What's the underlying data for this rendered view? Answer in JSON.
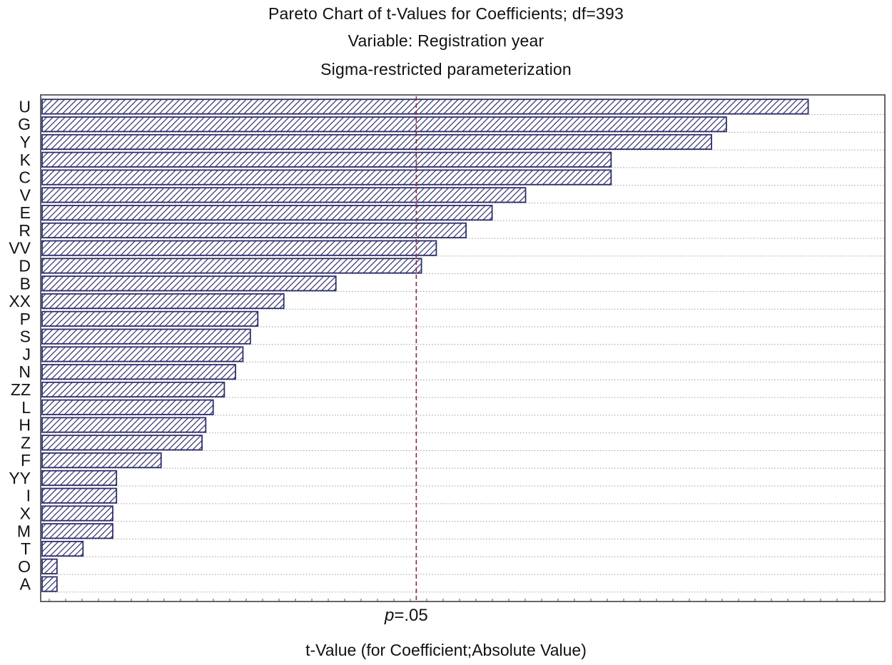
{
  "header": {
    "title": "Pareto Chart of t-Values for Coefficients; df=393",
    "subtitle": "Variable: Registration year",
    "subtitle2": "Sigma-restricted parameterization"
  },
  "reference": {
    "prefix": "p",
    "value_text": "=.05"
  },
  "chart_data": {
    "type": "bar",
    "orientation": "horizontal",
    "title": "Pareto Chart of t-Values for Coefficients; df=393",
    "subtitle": "Variable: Registration year",
    "subtitle2": "Sigma-restricted parameterization",
    "xlabel": "t-Value (for Coefficient;Absolute Value)",
    "categories": [
      "U",
      "G",
      "Y",
      "K",
      "C",
      "V",
      "E",
      "R",
      "VV",
      "D",
      "B",
      "XX",
      "P",
      "S",
      "J",
      "N",
      "ZZ",
      "L",
      "H",
      "Z",
      "F",
      "YY",
      "I",
      "X",
      "M",
      "T",
      "O",
      "A"
    ],
    "values": [
      2.04,
      1.82,
      1.78,
      1.51,
      1.51,
      1.28,
      1.19,
      1.12,
      1.04,
      1.0,
      0.77,
      0.63,
      0.56,
      0.54,
      0.52,
      0.5,
      0.47,
      0.44,
      0.42,
      0.41,
      0.3,
      0.18,
      0.18,
      0.17,
      0.17,
      0.09,
      0.02,
      0.02
    ],
    "xlim": [
      -0.02,
      2.25
    ],
    "reference_line": {
      "value": 0.99,
      "label": "p=.05",
      "color": "#8b2a3a"
    },
    "bar_fill": "hatched",
    "bar_color": "#2d2f6b",
    "grid": true,
    "axis_tick_labels": false
  }
}
